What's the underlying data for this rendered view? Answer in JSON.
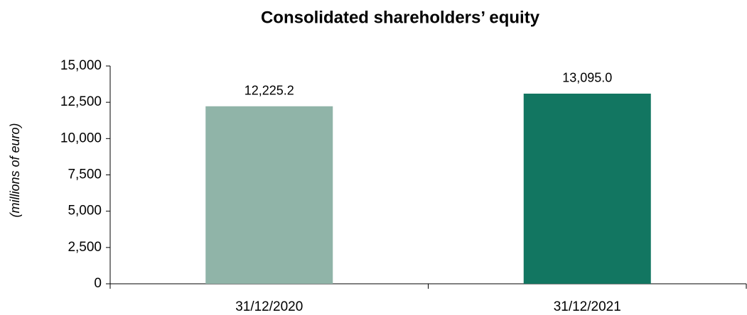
{
  "chart_data": {
    "type": "bar",
    "title": "Consolidated shareholders’ equity",
    "y_label": "(millions of euro)",
    "categories": [
      "31/12/2020",
      "31/12/2021"
    ],
    "values": [
      12225.2,
      13095.0
    ],
    "value_labels": [
      "12,225.2",
      "13,095.0"
    ],
    "colors": [
      "#90b4a8",
      "#127661"
    ],
    "ylim": [
      0,
      15000
    ],
    "yticks": [
      0,
      {
        "value": 2500,
        "label": "2,500"
      },
      {
        "value": 5000,
        "label": "5,000"
      },
      {
        "value": 7500,
        "label": "7,500"
      },
      {
        "value": 10000,
        "label": "10,000"
      },
      {
        "value": 12500,
        "label": "12,500"
      },
      {
        "value": 15000,
        "label": "15,000"
      }
    ],
    "grid": false
  }
}
